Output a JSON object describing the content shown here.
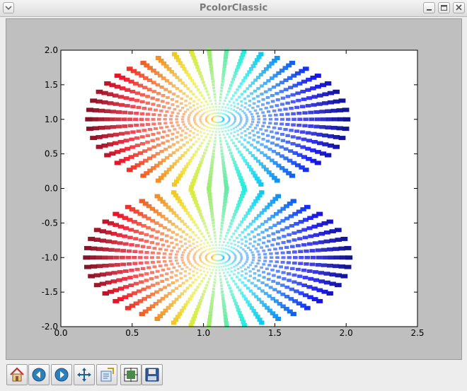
{
  "window": {
    "title": "PcolorClassic"
  },
  "chart_data": {
    "type": "heatmap",
    "title": "",
    "xlabel": "",
    "ylabel": "",
    "xlim": [
      0.0,
      2.5
    ],
    "ylim": [
      -2.0,
      2.0
    ],
    "xticks": [
      "0.0",
      "0.5",
      "1.0",
      "1.5",
      "2.0",
      "2.5"
    ],
    "yticks": [
      "2.0",
      "1.5",
      "1.0",
      "0.5",
      "0.0",
      "-0.5",
      "-1.0",
      "-1.5",
      "-2.0"
    ],
    "colormap": "jet",
    "grid": false,
    "lobes": [
      {
        "name": "upper",
        "x_range": [
          0.22,
          2.03
        ],
        "y_range": [
          0.0,
          2.0
        ],
        "center": [
          1.1,
          1.0
        ]
      },
      {
        "name": "lower",
        "x_range": [
          0.18,
          2.02
        ],
        "y_range": [
          -2.0,
          0.0
        ],
        "center": [
          1.1,
          -1.0
        ]
      }
    ],
    "colors": {
      "low": "#1e1e96",
      "high": "#a00000"
    }
  },
  "toolbar": {
    "buttons": [
      {
        "name": "home-button",
        "icon": "home-icon"
      },
      {
        "name": "back-button",
        "icon": "back-arrow-icon"
      },
      {
        "name": "forward-button",
        "icon": "forward-arrow-icon"
      },
      {
        "name": "pan-button",
        "icon": "move-icon"
      },
      {
        "name": "zoom-button",
        "icon": "zoom-rect-icon"
      },
      {
        "name": "subplots-button",
        "icon": "subplots-icon"
      },
      {
        "name": "save-button",
        "icon": "floppy-icon"
      }
    ]
  }
}
